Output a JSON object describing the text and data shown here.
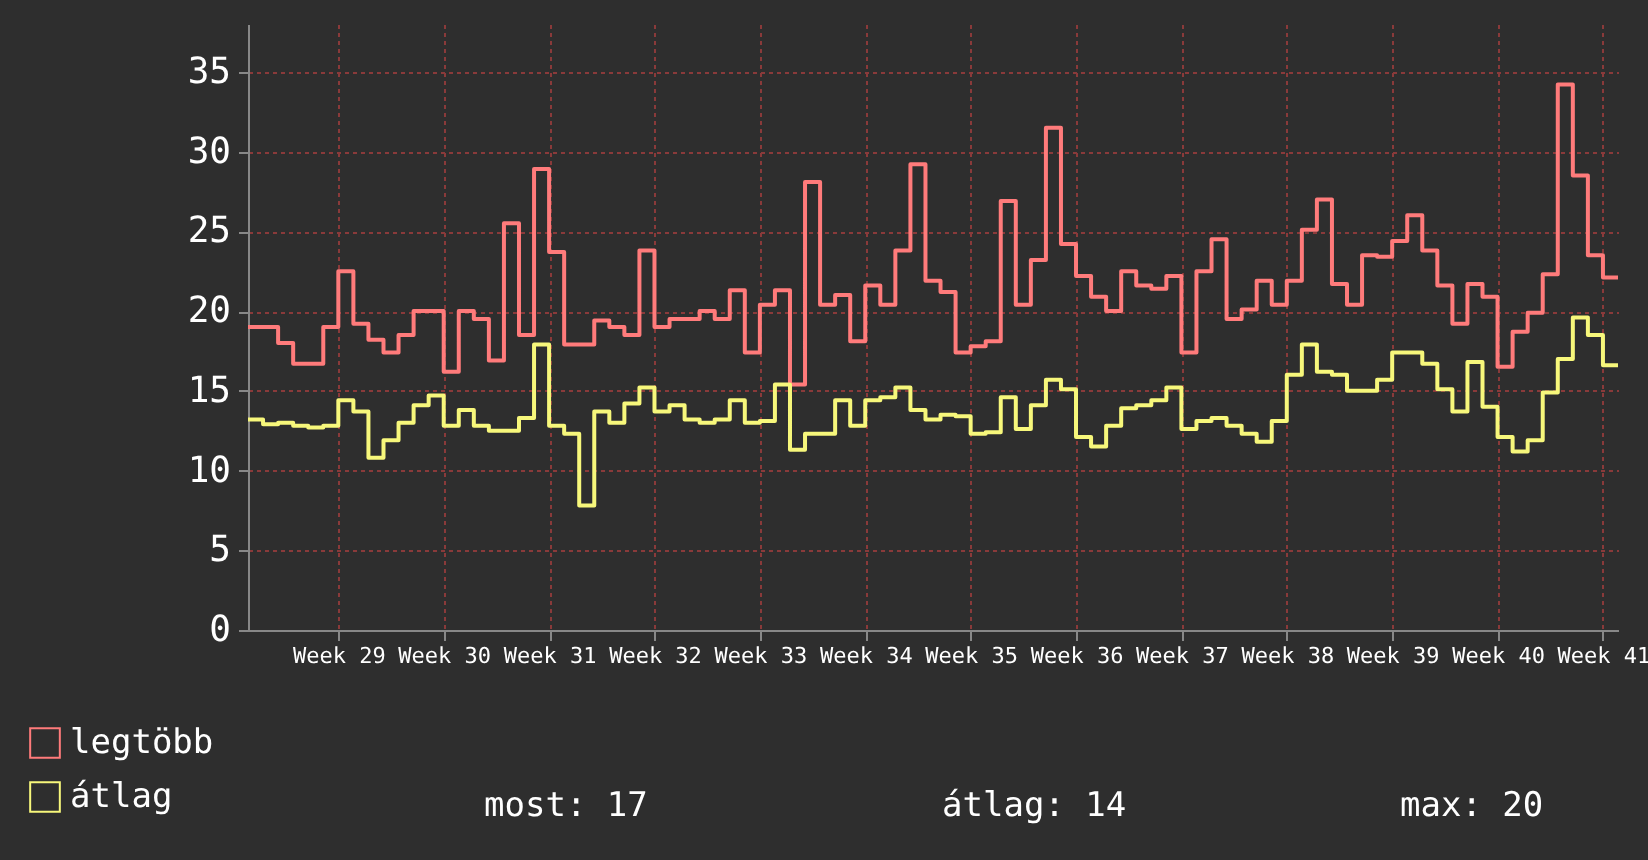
{
  "chart_data": {
    "type": "step",
    "categories": [
      null,
      null,
      null,
      null,
      null,
      null,
      "Week 29",
      null,
      null,
      null,
      null,
      null,
      null,
      "Week 30",
      null,
      null,
      null,
      null,
      null,
      null,
      "Week 31",
      null,
      null,
      null,
      null,
      null,
      null,
      "Week 32",
      null,
      null,
      null,
      null,
      null,
      null,
      "Week 33",
      null,
      null,
      null,
      null,
      null,
      null,
      "Week 34",
      null,
      null,
      null,
      null,
      null,
      null,
      "Week 35",
      null,
      null,
      null,
      null,
      null,
      null,
      "Week 36",
      null,
      null,
      null,
      null,
      null,
      null,
      "Week 37",
      null,
      null,
      null,
      null,
      null,
      null,
      "Week 38",
      null,
      null,
      null,
      null,
      null,
      null,
      "Week 39",
      null,
      null,
      null,
      null,
      null,
      null,
      "Week 40",
      null,
      null,
      null,
      null,
      null,
      null,
      "Week 41",
      null
    ],
    "series": [
      {
        "name": "legtöbb",
        "color": "#ff7b7b",
        "values": [
          19.0,
          19.0,
          18.0,
          16.7,
          16.7,
          19.0,
          22.5,
          19.2,
          18.2,
          17.4,
          18.5,
          20.0,
          20.0,
          16.2,
          20.0,
          19.5,
          16.9,
          25.5,
          18.5,
          28.9,
          23.7,
          17.9,
          17.9,
          19.4,
          19.0,
          18.5,
          23.8,
          19.0,
          19.5,
          19.5,
          20.0,
          19.5,
          21.3,
          17.4,
          20.4,
          21.3,
          15.4,
          28.1,
          20.4,
          21.0,
          18.1,
          21.6,
          20.4,
          23.8,
          29.2,
          21.9,
          21.2,
          17.4,
          17.8,
          18.1,
          26.9,
          20.4,
          23.2,
          31.5,
          24.2,
          22.2,
          20.9,
          20.0,
          22.5,
          21.6,
          21.4,
          22.2,
          17.4,
          22.5,
          24.5,
          19.5,
          20.1,
          21.9,
          20.4,
          21.9,
          25.1,
          27.0,
          21.7,
          20.4,
          23.5,
          23.4,
          24.4,
          26.0,
          23.8,
          21.6,
          19.2,
          21.7,
          20.9,
          16.5,
          18.7,
          19.9,
          22.3,
          34.2,
          28.5,
          23.5,
          22.1,
          22.1
        ]
      },
      {
        "name": "átlag",
        "color": "#f7f77b",
        "values": [
          13.2,
          12.9,
          13.0,
          12.8,
          12.7,
          12.8,
          14.4,
          13.7,
          10.8,
          11.9,
          13.0,
          14.1,
          14.7,
          12.8,
          13.8,
          12.8,
          12.5,
          12.5,
          13.3,
          17.9,
          12.8,
          12.3,
          7.8,
          13.7,
          13.0,
          14.2,
          15.2,
          13.7,
          14.1,
          13.2,
          13.0,
          13.2,
          14.4,
          13.0,
          13.1,
          15.4,
          11.3,
          12.3,
          12.3,
          14.4,
          12.8,
          14.4,
          14.6,
          15.2,
          13.8,
          13.2,
          13.5,
          13.4,
          12.3,
          12.4,
          14.6,
          12.6,
          14.1,
          15.7,
          15.1,
          12.1,
          11.5,
          12.8,
          13.9,
          14.1,
          14.4,
          15.2,
          12.6,
          13.1,
          13.3,
          12.8,
          12.3,
          11.8,
          13.1,
          16.0,
          17.9,
          16.2,
          16.0,
          15.0,
          15.0,
          15.7,
          17.4,
          17.4,
          16.7,
          15.1,
          13.7,
          16.8,
          14.0,
          12.1,
          11.2,
          11.9,
          14.9,
          17.0,
          19.6,
          18.5,
          16.6,
          16.6
        ]
      }
    ],
    "ylim": [
      0,
      38
    ],
    "yticks": [
      0,
      5,
      10,
      15,
      20,
      25,
      30,
      35
    ],
    "grid": true,
    "legend": "bottom",
    "marker": "none",
    "line_style": "solid",
    "annotations": [
      "most: 17",
      "átlag: 14",
      "max: 20"
    ]
  }
}
